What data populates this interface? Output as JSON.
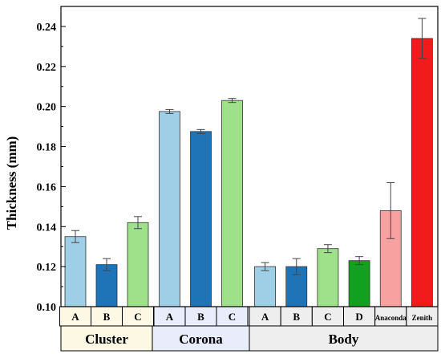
{
  "chart_data": {
    "type": "bar",
    "title": "",
    "ylabel": "Thickness (mm)",
    "xlabel": "",
    "ylim": [
      0.1,
      0.25
    ],
    "yticks": [
      0.1,
      0.12,
      0.14,
      0.16,
      0.18,
      0.2,
      0.22,
      0.24
    ],
    "ytick_labels": [
      "0.10",
      "0.12",
      "0.14",
      "0.16",
      "0.18",
      "0.20",
      "0.22",
      "0.24"
    ],
    "groups": [
      {
        "name": "Cluster",
        "bg_color": "#fcf8e3",
        "bars": [
          {
            "label": "A",
            "value": 0.135,
            "error": 0.003,
            "color": "#9ecfe6"
          },
          {
            "label": "B",
            "value": 0.121,
            "error": 0.003,
            "color": "#1f74b8"
          },
          {
            "label": "C",
            "value": 0.142,
            "error": 0.003,
            "color": "#9fe08a"
          }
        ]
      },
      {
        "name": "Corona",
        "bg_color": "#e8ecfb",
        "bars": [
          {
            "label": "A",
            "value": 0.1975,
            "error": 0.001,
            "color": "#9ecfe6"
          },
          {
            "label": "B",
            "value": 0.1875,
            "error": 0.001,
            "color": "#1f74b8"
          },
          {
            "label": "C",
            "value": 0.203,
            "error": 0.001,
            "color": "#9fe08a"
          }
        ]
      },
      {
        "name": "Body",
        "bg_color": "#eeeeee",
        "bars": [
          {
            "label": "A",
            "value": 0.12,
            "error": 0.002,
            "color": "#9ecfe6"
          },
          {
            "label": "B",
            "value": 0.12,
            "error": 0.004,
            "color": "#1f74b8"
          },
          {
            "label": "C",
            "value": 0.129,
            "error": 0.002,
            "color": "#9fe08a"
          },
          {
            "label": "D",
            "value": 0.123,
            "error": 0.002,
            "color": "#12a020"
          },
          {
            "label": "Anaconda",
            "value": 0.148,
            "error": 0.014,
            "color": "#f7a1a1"
          },
          {
            "label": "Zenith",
            "value": 0.234,
            "error": 0.01,
            "color": "#f21b1b"
          }
        ]
      }
    ],
    "grid": false,
    "legend": "none"
  }
}
